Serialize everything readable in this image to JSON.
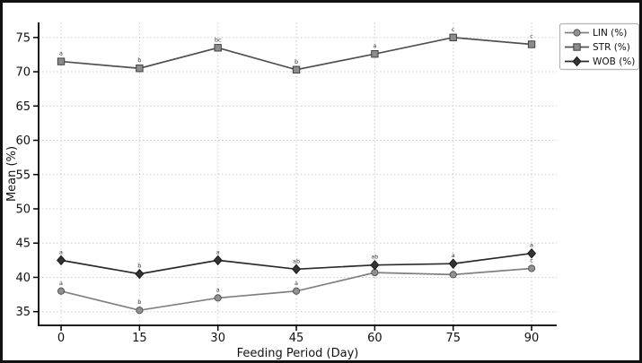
{
  "figure": {
    "background": "#ffffff",
    "frame_color": "#111111",
    "grid_color": "#cccccc",
    "spine_color": "#000000",
    "tick_label_color": "#111111",
    "point_label_color": "#3a3a3a"
  },
  "chart_data": {
    "type": "line",
    "title": "",
    "xlabel": "Feeding Period (Day)",
    "ylabel": "Mean (%)",
    "x": [
      0,
      15,
      30,
      45,
      60,
      75,
      90
    ],
    "x_tick_labels": [
      "0",
      "15",
      "30",
      "45",
      "60",
      "75",
      "90"
    ],
    "y_ticks": [
      35,
      40,
      45,
      50,
      55,
      60,
      65,
      70,
      75
    ],
    "y_tick_labels": [
      "35",
      "40",
      "45",
      "50",
      "55",
      "60",
      "65",
      "70",
      "75"
    ],
    "xlim": [
      -4.3,
      94.8
    ],
    "ylim": [
      33.0,
      77.2
    ],
    "grid": "dotted-both",
    "legend_position": "upper-right-outside",
    "series": [
      {
        "name": "LIN (%)",
        "marker": "circle",
        "line_color": "#808080",
        "marker_fill": "#919191",
        "marker_edge": "#555555",
        "values": [
          38.0,
          35.2,
          37.0,
          38.0,
          40.7,
          40.4,
          41.3
        ],
        "point_labels": [
          "a",
          "b",
          "a",
          "a",
          "",
          "c",
          "c"
        ]
      },
      {
        "name": "STR (%)",
        "marker": "square",
        "line_color": "#505050",
        "marker_fill": "#8c8c8c",
        "marker_edge": "#3f3f3f",
        "values": [
          71.5,
          70.5,
          73.5,
          70.3,
          72.6,
          75.0,
          74.0
        ],
        "point_labels": [
          "a",
          "b",
          "bc",
          "b",
          "a",
          "c",
          "c"
        ]
      },
      {
        "name": "WOB (%)",
        "marker": "diamond",
        "line_color": "#2b2b2b",
        "marker_fill": "#333333",
        "marker_edge": "#1a1a1a",
        "values": [
          42.5,
          40.5,
          42.5,
          41.2,
          41.8,
          42.0,
          43.5
        ],
        "point_labels": [
          "a",
          "b",
          "a",
          "ab",
          "ab",
          "a",
          "a"
        ]
      }
    ]
  }
}
